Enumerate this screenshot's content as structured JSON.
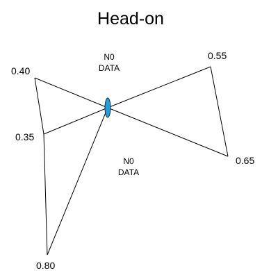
{
  "title": "Head-on",
  "labels": {
    "upper_left": "0.40",
    "upper_right": "0.55",
    "left": "0.35",
    "right": "0.65",
    "bottom": "0.80"
  },
  "no_data": {
    "top": {
      "line1": "N0",
      "line2": "DATA"
    },
    "bottom": {
      "line1": "N0",
      "line2": "DATA"
    }
  },
  "colors": {
    "lines": "#000000",
    "center_marker_fill": "#1f9fd6",
    "center_marker_stroke": "#1a2a4a"
  }
}
